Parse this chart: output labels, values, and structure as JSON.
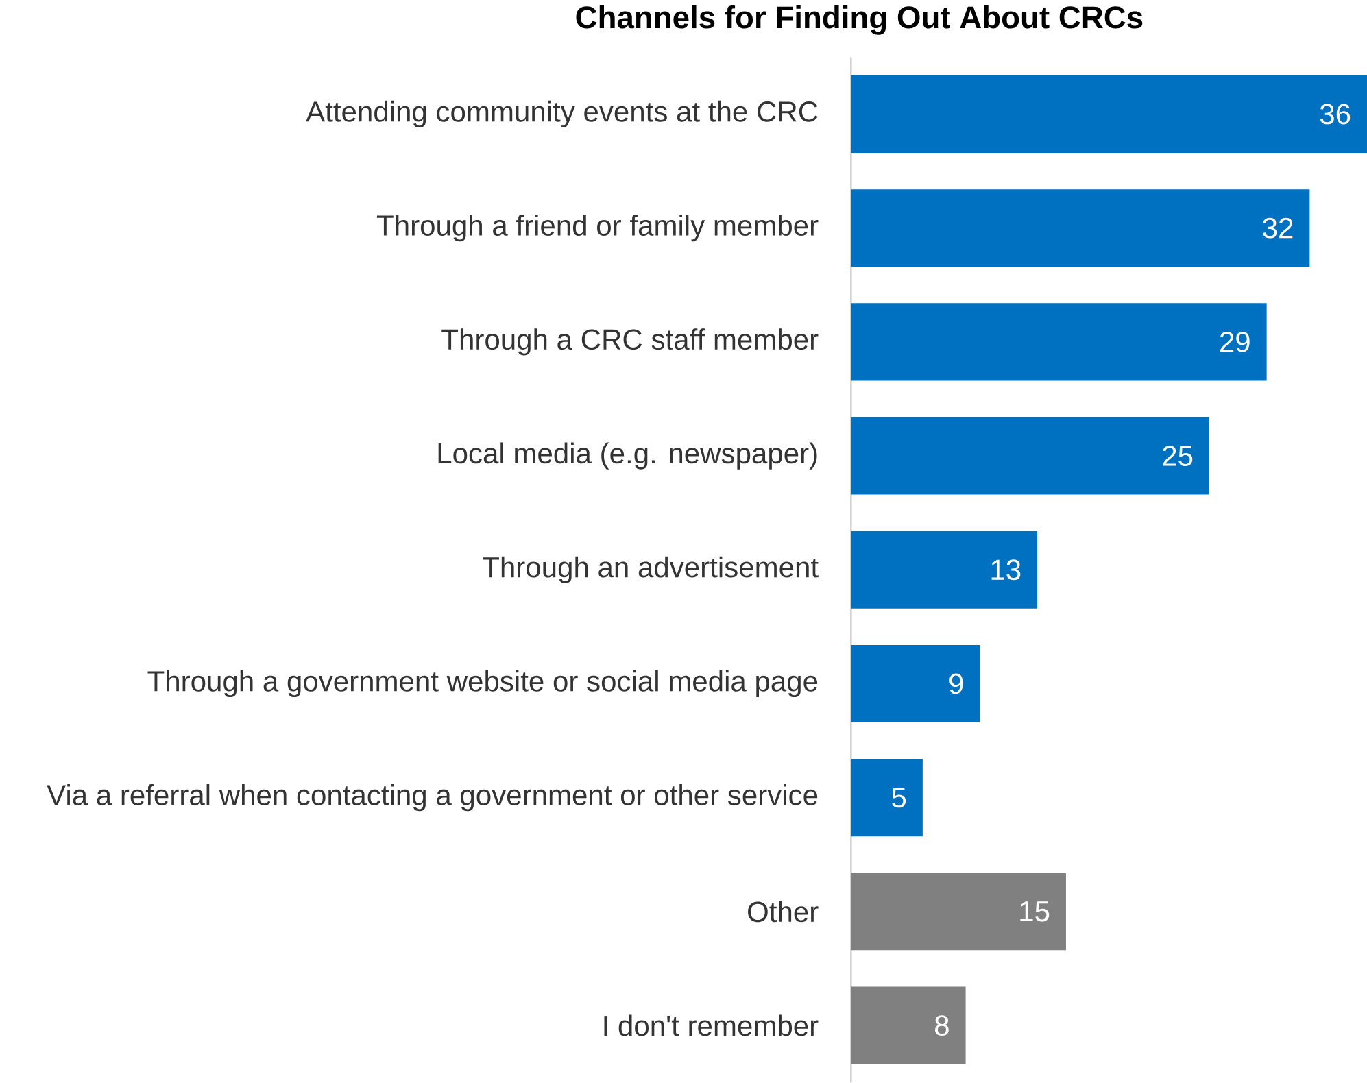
{
  "chart_data": {
    "type": "bar",
    "orientation": "horizontal",
    "title": "Channels for Finding Out About CRCs",
    "categories": [
      "Attending community events at the CRC",
      "Through a friend or family member",
      "Through a CRC staff member",
      "Local media (e.g. newspaper)",
      "Through an advertisement",
      "Through a government website or social media page",
      "Via a referral when contacting a government or other service",
      "Other",
      "I don't remember"
    ],
    "values": [
      36,
      32,
      29,
      25,
      13,
      9,
      5,
      15,
      8
    ],
    "colors": [
      "#0070c0",
      "#0070c0",
      "#0070c0",
      "#0070c0",
      "#0070c0",
      "#0070c0",
      "#0070c0",
      "#808080",
      "#808080"
    ],
    "data_labels": true
  }
}
